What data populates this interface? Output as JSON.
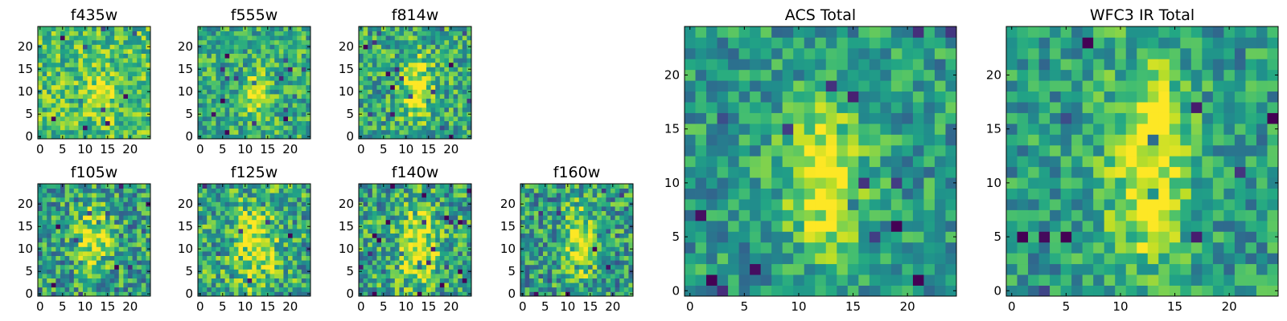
{
  "chart_data": {
    "type": "heatmap",
    "colormap": "viridis",
    "grid": false,
    "image_size": [
      25,
      25
    ],
    "panels": [
      {
        "id": "f435w",
        "title": "f435w",
        "size": "small",
        "seed": 11,
        "blob": {
          "cx": 13.5,
          "cy": 9.5,
          "sx": 2.2,
          "sy": 3.4,
          "amp": 0.25
        },
        "base": 0.7,
        "noise": 0.5,
        "xticks": [
          0,
          5,
          10,
          15,
          20
        ],
        "yticks": [
          0,
          5,
          10,
          15,
          20
        ]
      },
      {
        "id": "f555w",
        "title": "f555w",
        "size": "small",
        "seed": 23,
        "blob": {
          "cx": 12.5,
          "cy": 9.0,
          "sx": 2.0,
          "sy": 3.6,
          "amp": 0.35
        },
        "base": 0.62,
        "noise": 0.5,
        "xticks": [
          0,
          5,
          10,
          15,
          20
        ],
        "yticks": [
          0,
          5,
          10,
          15,
          20
        ]
      },
      {
        "id": "f814w",
        "title": "f814w",
        "size": "small",
        "seed": 37,
        "blob": {
          "cx": 12.5,
          "cy": 11.0,
          "sx": 2.4,
          "sy": 5.0,
          "amp": 0.4
        },
        "base": 0.6,
        "noise": 0.55,
        "xticks": [
          0,
          5,
          10,
          15,
          20
        ],
        "yticks": [
          0,
          5,
          10,
          15,
          20
        ]
      },
      {
        "id": "f105w",
        "title": "f105w",
        "size": "small",
        "seed": 41,
        "blob": {
          "cx": 12.0,
          "cy": 12.0,
          "sx": 2.6,
          "sy": 5.5,
          "amp": 0.4
        },
        "base": 0.55,
        "noise": 0.6,
        "xticks": [
          0,
          5,
          10,
          15,
          20
        ],
        "yticks": [
          0,
          5,
          10,
          15,
          20
        ]
      },
      {
        "id": "f125w",
        "title": "f125w",
        "size": "small",
        "seed": 53,
        "blob": {
          "cx": 12.5,
          "cy": 11.0,
          "sx": 3.0,
          "sy": 6.0,
          "amp": 0.4
        },
        "base": 0.6,
        "noise": 0.6,
        "xticks": [
          0,
          5,
          10,
          15,
          20
        ],
        "yticks": [
          0,
          5,
          10,
          15,
          20
        ]
      },
      {
        "id": "f140w",
        "title": "f140w",
        "size": "small",
        "seed": 67,
        "blob": {
          "cx": 12.5,
          "cy": 10.5,
          "sx": 3.0,
          "sy": 5.5,
          "amp": 0.45
        },
        "base": 0.58,
        "noise": 0.6,
        "xticks": [
          0,
          5,
          10,
          15,
          20
        ],
        "yticks": [
          0,
          5,
          10,
          15,
          20
        ]
      },
      {
        "id": "f160w",
        "title": "f160w",
        "size": "small",
        "seed": 79,
        "blob": {
          "cx": 12.5,
          "cy": 11.5,
          "sx": 2.2,
          "sy": 5.5,
          "amp": 0.45
        },
        "base": 0.55,
        "noise": 0.6,
        "xticks": [
          0,
          5,
          10,
          15,
          20
        ],
        "yticks": [
          0,
          5,
          10,
          15,
          20
        ]
      },
      {
        "id": "acs-total",
        "title": "ACS Total",
        "size": "large",
        "seed": 91,
        "blob": {
          "cx": 12.5,
          "cy": 10.5,
          "sx": 2.5,
          "sy": 5.0,
          "amp": 0.45
        },
        "base": 0.55,
        "noise": 0.45,
        "xticks": [
          0,
          5,
          10,
          15,
          20
        ],
        "yticks": [
          0,
          5,
          10,
          15,
          20
        ]
      },
      {
        "id": "wfc3-ir-total",
        "title": "WFC3 IR Total",
        "size": "large",
        "seed": 103,
        "blob": {
          "cx": 12.5,
          "cy": 11.5,
          "sx": 2.5,
          "sy": 6.5,
          "amp": 0.5
        },
        "base": 0.55,
        "noise": 0.45,
        "xticks": [
          0,
          5,
          10,
          15,
          20
        ],
        "yticks": [
          0,
          5,
          10,
          15,
          20
        ]
      }
    ]
  }
}
